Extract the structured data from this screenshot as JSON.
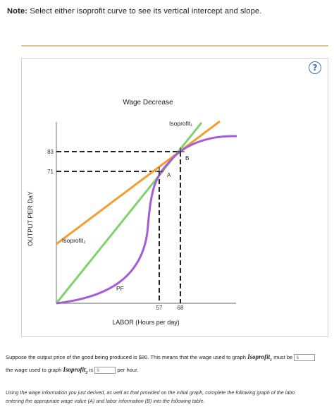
{
  "note": {
    "label": "Note:",
    "text": "Select either isoprofit curve to see its vertical intercept and slope."
  },
  "help": {
    "label": "?"
  },
  "chart_data": {
    "type": "line",
    "title": "Wage Decrease",
    "xlabel": "LABOR (Hours per day)",
    "ylabel": "OUTPUT PER DaY",
    "x_ticks": [
      "57",
      "68"
    ],
    "y_ticks": [
      "83",
      "71"
    ],
    "points": [
      {
        "label": "A",
        "x": 57,
        "y": 71
      },
      {
        "label": "B",
        "x": 68,
        "y": 83
      }
    ],
    "series": [
      {
        "name": "Isoprofit₁",
        "color": "#7fd36b"
      },
      {
        "name": "Isoprofit₂",
        "color": "#f0a030"
      },
      {
        "name": "PF",
        "color": "#a65cd6"
      }
    ],
    "grid": false
  },
  "question": {
    "p1": "Suppose the output price of the good being produced is $80. This means that the wage used to graph",
    "iso1": "Isoprofit",
    "sub1": "1",
    "p2": "must be",
    "p3": "the wage used to graph",
    "iso2": "Isoprofit",
    "sub2": "2",
    "p4": "is",
    "p5": "per hour.",
    "placeholder": "$"
  },
  "instructions": {
    "line1": "Using the wage information you just derived, as well as that provided on the initial graph, complete the following graph of the labo",
    "line2": "entering the appropriate wage value (A) and labor information (B) into the following table."
  }
}
